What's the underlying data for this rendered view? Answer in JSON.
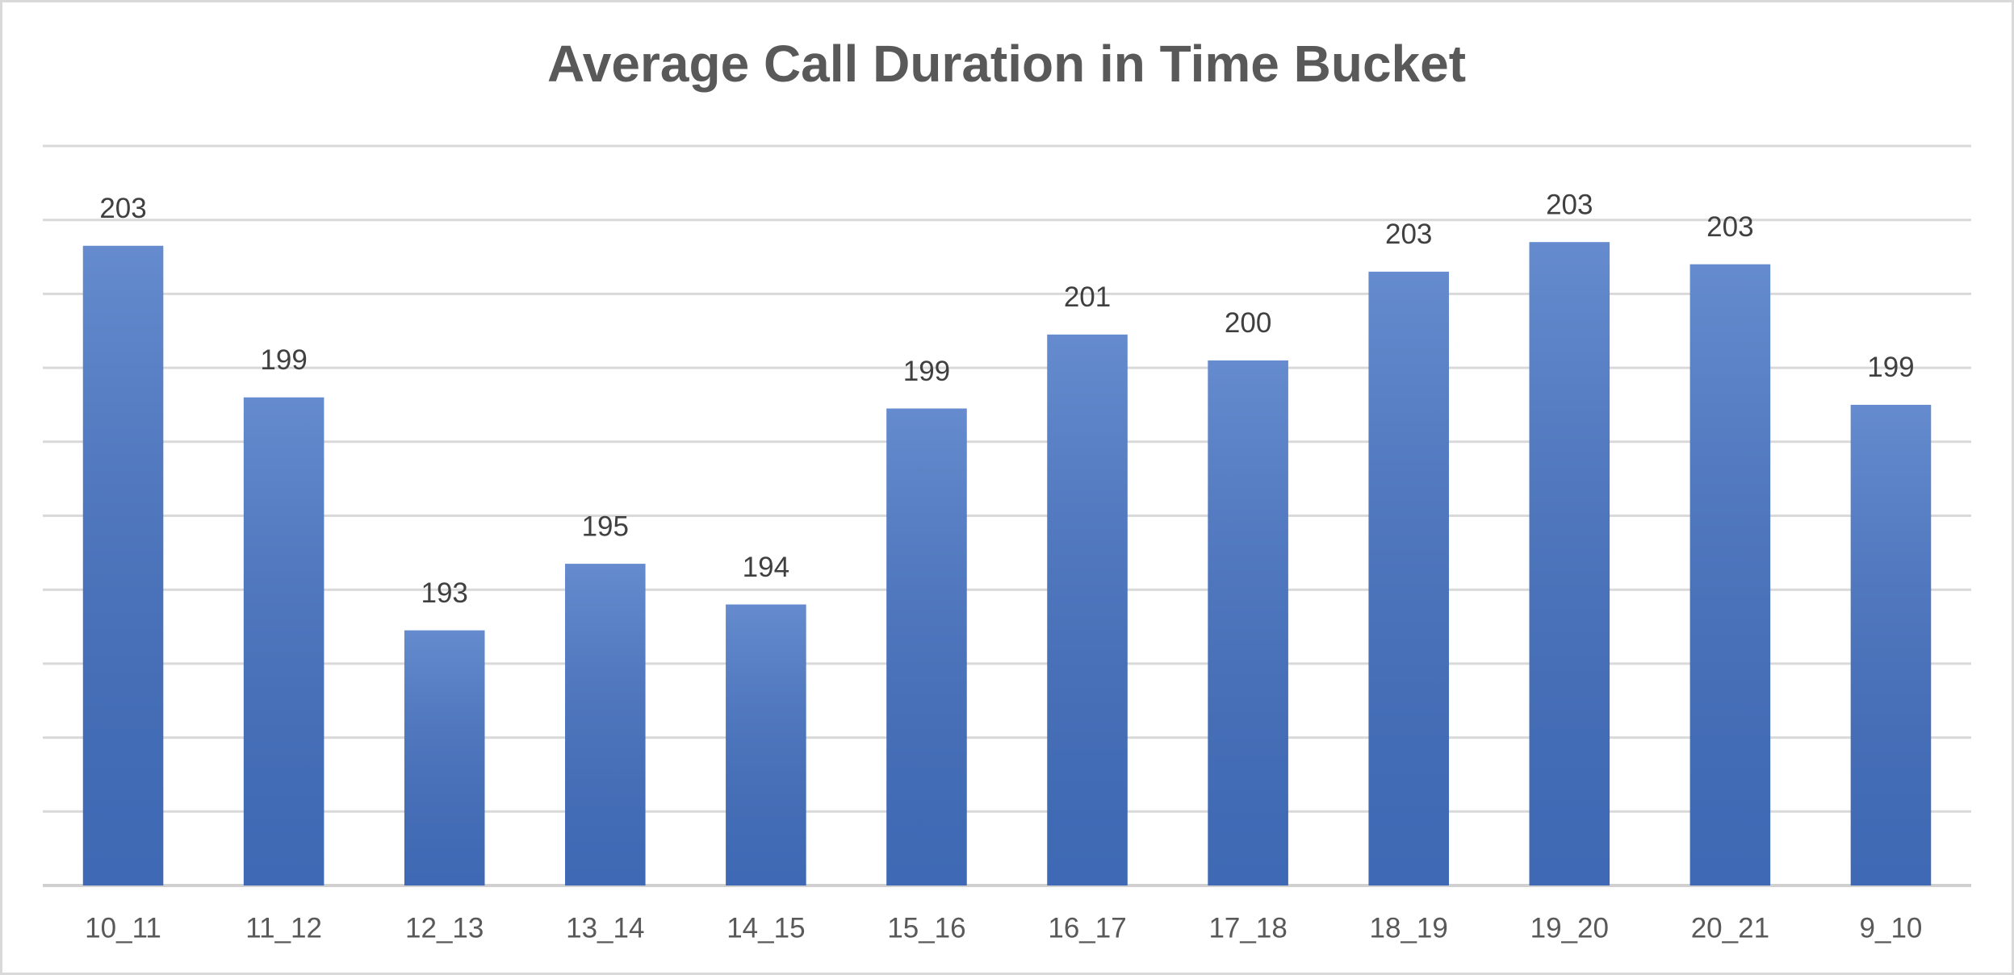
{
  "chart_data": {
    "type": "bar",
    "title": "Average Call Duration in Time Bucket",
    "categories": [
      "10_11",
      "11_12",
      "12_13",
      "13_14",
      "14_15",
      "15_16",
      "16_17",
      "17_18",
      "18_19",
      "19_20",
      "20_21",
      "9_10"
    ],
    "values": [
      203.3,
      199.2,
      192.9,
      194.7,
      193.6,
      198.9,
      200.9,
      200.2,
      202.6,
      203.4,
      202.8,
      199.0
    ],
    "value_labels": [
      "203",
      "199",
      "193",
      "195",
      "194",
      "199",
      "201",
      "200",
      "203",
      "203",
      "203",
      "199"
    ],
    "color": "#4472c4",
    "ylim": [
      186,
      206
    ],
    "yticks": [
      186,
      188,
      190,
      192,
      194,
      196,
      198,
      200,
      202,
      204,
      206
    ],
    "grid": true
  }
}
